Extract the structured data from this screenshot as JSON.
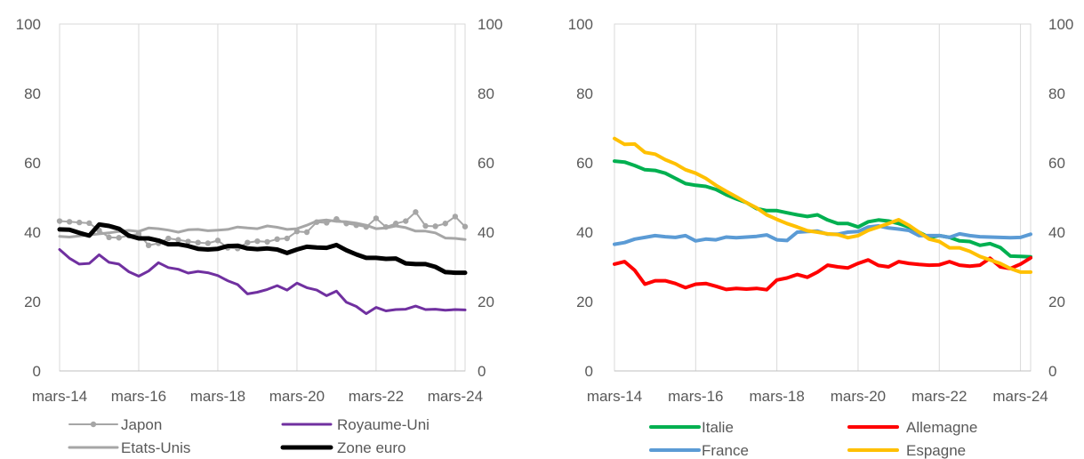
{
  "chart_data": [
    {
      "type": "line",
      "x_label_ticks": [
        "mars-14",
        "mars-16",
        "mars-18",
        "mars-20",
        "mars-22",
        "mars-24"
      ],
      "x_range": [
        "2014-03",
        "2024-06"
      ],
      "ylim": [
        0,
        100
      ],
      "y_ticks": [
        0,
        20,
        40,
        60,
        80,
        100
      ],
      "y_ticks_right": [
        0,
        20,
        40,
        60,
        80,
        100
      ],
      "grid": "vertical",
      "legend_placement": "bottom",
      "series": [
        {
          "name": "Japon",
          "color": "#a6a6a6",
          "width": 2,
          "marker": true,
          "x": [
            "2014-03",
            "2014-06",
            "2014-09",
            "2014-12",
            "2015-03",
            "2015-06",
            "2015-09",
            "2015-12",
            "2016-03",
            "2016-06",
            "2016-09",
            "2016-12",
            "2017-03",
            "2017-06",
            "2017-09",
            "2017-12",
            "2018-03",
            "2018-06",
            "2018-09",
            "2018-12",
            "2019-03",
            "2019-06",
            "2019-09",
            "2019-12",
            "2020-03",
            "2020-06",
            "2020-09",
            "2020-12",
            "2021-03",
            "2021-06",
            "2021-09",
            "2021-12",
            "2022-03",
            "2022-06",
            "2022-09",
            "2022-12",
            "2023-03",
            "2023-06",
            "2023-09",
            "2023-12",
            "2024-03",
            "2024-06"
          ],
          "values": [
            43.2,
            43,
            42.8,
            42.6,
            40.5,
            38.5,
            38.4,
            39,
            39.5,
            36.2,
            36.8,
            38.2,
            37.8,
            37.3,
            37,
            36.8,
            37.6,
            35.5,
            35.3,
            37,
            37.4,
            37.2,
            38,
            38.2,
            40.2,
            40,
            42.9,
            42.7,
            43.8,
            42.5,
            42,
            41.5,
            44,
            41.5,
            42.5,
            43.2,
            45.8,
            41.8,
            41.7,
            42.5,
            44.5,
            41.6
          ]
        },
        {
          "name": "Royaume-Uni",
          "color": "#7030a0",
          "width": 3,
          "marker": false,
          "x": [
            "2014-03",
            "2014-06",
            "2014-09",
            "2014-12",
            "2015-03",
            "2015-06",
            "2015-09",
            "2015-12",
            "2016-03",
            "2016-06",
            "2016-09",
            "2016-12",
            "2017-03",
            "2017-06",
            "2017-09",
            "2017-12",
            "2018-03",
            "2018-06",
            "2018-09",
            "2018-12",
            "2019-03",
            "2019-06",
            "2019-09",
            "2019-12",
            "2020-03",
            "2020-06",
            "2020-09",
            "2020-12",
            "2021-03",
            "2021-06",
            "2021-09",
            "2021-12",
            "2022-03",
            "2022-06",
            "2022-09",
            "2022-12",
            "2023-03",
            "2023-06",
            "2023-09",
            "2023-12",
            "2024-03",
            "2024-06"
          ],
          "values": [
            35,
            32.5,
            30.8,
            31,
            33.5,
            31.3,
            30.8,
            28.6,
            27.3,
            28.8,
            31.2,
            29.8,
            29.3,
            28.2,
            28.7,
            28.3,
            27.5,
            26,
            24.9,
            22.2,
            22.7,
            23.5,
            24.6,
            23.3,
            25.3,
            24,
            23.3,
            21.7,
            23,
            19.8,
            18.6,
            16.5,
            18.3,
            17.3,
            17.7,
            17.8,
            18.7,
            17.7,
            17.8,
            17.5,
            17.7,
            17.6
          ]
        },
        {
          "name": "Etats-Unis",
          "color": "#a6a6a6",
          "width": 3,
          "marker": false,
          "x": [
            "2014-03",
            "2014-06",
            "2014-09",
            "2014-12",
            "2015-03",
            "2015-06",
            "2015-09",
            "2015-12",
            "2016-03",
            "2016-06",
            "2016-09",
            "2016-12",
            "2017-03",
            "2017-06",
            "2017-09",
            "2017-12",
            "2018-03",
            "2018-06",
            "2018-09",
            "2018-12",
            "2019-03",
            "2019-06",
            "2019-09",
            "2019-12",
            "2020-03",
            "2020-06",
            "2020-09",
            "2020-12",
            "2021-03",
            "2021-06",
            "2021-09",
            "2021-12",
            "2022-03",
            "2022-06",
            "2022-09",
            "2022-12",
            "2023-03",
            "2023-06",
            "2023-09",
            "2023-12",
            "2024-03",
            "2024-06"
          ],
          "values": [
            38.8,
            38.6,
            38.9,
            39.2,
            39.5,
            39.8,
            40.2,
            40.5,
            40.2,
            41.2,
            41,
            40.6,
            40,
            40.7,
            40.8,
            40.4,
            40.6,
            40.8,
            41.5,
            41.2,
            41,
            41.8,
            41.4,
            40.8,
            41,
            42,
            43.2,
            43.5,
            43.1,
            43,
            42.6,
            42,
            41,
            41.2,
            41.8,
            41.3,
            40.3,
            40.3,
            39.8,
            38.3,
            38.2,
            37.9
          ]
        },
        {
          "name": "Zone euro",
          "color": "#000000",
          "width": 5,
          "marker": false,
          "x": [
            "2014-03",
            "2014-06",
            "2014-09",
            "2014-12",
            "2015-03",
            "2015-06",
            "2015-09",
            "2015-12",
            "2016-03",
            "2016-06",
            "2016-09",
            "2016-12",
            "2017-03",
            "2017-06",
            "2017-09",
            "2017-12",
            "2018-03",
            "2018-06",
            "2018-09",
            "2018-12",
            "2019-03",
            "2019-06",
            "2019-09",
            "2019-12",
            "2020-03",
            "2020-06",
            "2020-09",
            "2020-12",
            "2021-03",
            "2021-06",
            "2021-09",
            "2021-12",
            "2022-03",
            "2022-06",
            "2022-09",
            "2022-12",
            "2023-03",
            "2023-06",
            "2023-09",
            "2023-12",
            "2024-03",
            "2024-06"
          ],
          "values": [
            40.8,
            40.7,
            39.8,
            39,
            42.2,
            41.8,
            41,
            39,
            38.2,
            38.2,
            37.6,
            36.5,
            36.5,
            36,
            35.2,
            35,
            35.2,
            36,
            36.1,
            35.3,
            35.1,
            35.3,
            35,
            34,
            35,
            35.8,
            35.6,
            35.5,
            36.3,
            34.8,
            33.6,
            32.6,
            32.6,
            32.3,
            32.4,
            31,
            30.8,
            30.8,
            30,
            28.5,
            28.3,
            28.3
          ]
        }
      ],
      "legend": [
        "Japon",
        "Royaume-Uni",
        "Etats-Unis",
        "Zone euro"
      ]
    },
    {
      "type": "line",
      "x_label_ticks": [
        "mars-14",
        "mars-16",
        "mars-18",
        "mars-20",
        "mars-22",
        "mars-24"
      ],
      "x_range": [
        "2014-03",
        "2024-06"
      ],
      "ylim": [
        0,
        100
      ],
      "y_ticks": [
        0,
        20,
        40,
        60,
        80,
        100
      ],
      "y_ticks_right": [
        0,
        20,
        40,
        60,
        80,
        100
      ],
      "grid": "vertical",
      "legend_placement": "bottom",
      "series": [
        {
          "name": "Italie",
          "color": "#00b050",
          "width": 4,
          "marker": false,
          "x": [
            "2014-03",
            "2014-06",
            "2014-09",
            "2014-12",
            "2015-03",
            "2015-06",
            "2015-09",
            "2015-12",
            "2016-03",
            "2016-06",
            "2016-09",
            "2016-12",
            "2017-03",
            "2017-06",
            "2017-09",
            "2017-12",
            "2018-03",
            "2018-06",
            "2018-09",
            "2018-12",
            "2019-03",
            "2019-06",
            "2019-09",
            "2019-12",
            "2020-03",
            "2020-06",
            "2020-09",
            "2020-12",
            "2021-03",
            "2021-06",
            "2021-09",
            "2021-12",
            "2022-03",
            "2022-06",
            "2022-09",
            "2022-12",
            "2023-03",
            "2023-06",
            "2023-09",
            "2023-12",
            "2024-03",
            "2024-06"
          ],
          "values": [
            60.5,
            60.2,
            59.2,
            58,
            57.8,
            57,
            55.5,
            54,
            53.5,
            53.2,
            52.3,
            50.8,
            49.6,
            48.5,
            46.8,
            46.2,
            46.2,
            45.6,
            45,
            44.5,
            45,
            43.5,
            42.5,
            42.5,
            41.5,
            43,
            43.5,
            43.2,
            42.5,
            41.5,
            40,
            38.5,
            39,
            38.5,
            37.5,
            37.3,
            36.2,
            36.7,
            35.6,
            33.1,
            33,
            32.9
          ]
        },
        {
          "name": "Allemagne",
          "color": "#ff0000",
          "width": 4,
          "marker": false,
          "x": [
            "2014-03",
            "2014-06",
            "2014-09",
            "2014-12",
            "2015-03",
            "2015-06",
            "2015-09",
            "2015-12",
            "2016-03",
            "2016-06",
            "2016-09",
            "2016-12",
            "2017-03",
            "2017-06",
            "2017-09",
            "2017-12",
            "2018-03",
            "2018-06",
            "2018-09",
            "2018-12",
            "2019-03",
            "2019-06",
            "2019-09",
            "2019-12",
            "2020-03",
            "2020-06",
            "2020-09",
            "2020-12",
            "2021-03",
            "2021-06",
            "2021-09",
            "2021-12",
            "2022-03",
            "2022-06",
            "2022-09",
            "2022-12",
            "2023-03",
            "2023-06",
            "2023-09",
            "2023-12",
            "2024-03",
            "2024-06"
          ],
          "values": [
            30.8,
            31.5,
            29,
            25,
            26,
            26,
            25.2,
            24,
            25,
            25.2,
            24.4,
            23.5,
            23.8,
            23.6,
            23.8,
            23.4,
            26.2,
            26.8,
            27.8,
            27,
            28.5,
            30.5,
            30,
            29.7,
            31,
            32,
            30.4,
            30,
            31.5,
            31,
            30.7,
            30.5,
            30.6,
            31.5,
            30.5,
            30.2,
            30.5,
            32.5,
            30,
            29.5,
            30.8,
            32.6
          ]
        },
        {
          "name": "France",
          "color": "#5b9bd5",
          "width": 4,
          "marker": false,
          "x": [
            "2014-03",
            "2014-06",
            "2014-09",
            "2014-12",
            "2015-03",
            "2015-06",
            "2015-09",
            "2015-12",
            "2016-03",
            "2016-06",
            "2016-09",
            "2016-12",
            "2017-03",
            "2017-06",
            "2017-09",
            "2017-12",
            "2018-03",
            "2018-06",
            "2018-09",
            "2018-12",
            "2019-03",
            "2019-06",
            "2019-09",
            "2019-12",
            "2020-03",
            "2020-06",
            "2020-09",
            "2020-12",
            "2021-03",
            "2021-06",
            "2021-09",
            "2021-12",
            "2022-03",
            "2022-06",
            "2022-09",
            "2022-12",
            "2023-03",
            "2023-06",
            "2023-09",
            "2023-12",
            "2024-03",
            "2024-06"
          ],
          "values": [
            36.5,
            37,
            38,
            38.5,
            39,
            38.7,
            38.5,
            39,
            37.5,
            38,
            37.8,
            38.6,
            38.4,
            38.6,
            38.8,
            39.2,
            37.8,
            37.6,
            40,
            40.2,
            40.3,
            39.4,
            39.4,
            40,
            40.2,
            41.5,
            41.8,
            41.2,
            40.9,
            40.5,
            39,
            39,
            39,
            38.5,
            39.5,
            39,
            38.7,
            38.6,
            38.5,
            38.4,
            38.5,
            39.4
          ]
        },
        {
          "name": "Espagne",
          "color": "#ffc000",
          "width": 4,
          "marker": false,
          "x": [
            "2014-03",
            "2014-06",
            "2014-09",
            "2014-12",
            "2015-03",
            "2015-06",
            "2015-09",
            "2015-12",
            "2016-03",
            "2016-06",
            "2016-09",
            "2016-12",
            "2017-03",
            "2017-06",
            "2017-09",
            "2017-12",
            "2018-03",
            "2018-06",
            "2018-09",
            "2018-12",
            "2019-03",
            "2019-06",
            "2019-09",
            "2019-12",
            "2020-03",
            "2020-06",
            "2020-09",
            "2020-12",
            "2021-03",
            "2021-06",
            "2021-09",
            "2021-12",
            "2022-03",
            "2022-06",
            "2022-09",
            "2022-12",
            "2023-03",
            "2023-06",
            "2023-09",
            "2023-12",
            "2024-03",
            "2024-06"
          ],
          "values": [
            67,
            65.3,
            65.4,
            63,
            62.5,
            60.9,
            59.7,
            58,
            57,
            55.5,
            53.5,
            51.8,
            50.2,
            48.5,
            47,
            45,
            43.7,
            42.5,
            41.5,
            40.4,
            40,
            39.5,
            39.3,
            38.4,
            39,
            40.5,
            41.5,
            42.5,
            43.6,
            42,
            40,
            38,
            37.3,
            35.5,
            35.5,
            34.5,
            33,
            32,
            31,
            29.5,
            28.5,
            28.5
          ]
        }
      ],
      "legend": [
        "Italie",
        "Allemagne",
        "France",
        "Espagne"
      ]
    }
  ]
}
